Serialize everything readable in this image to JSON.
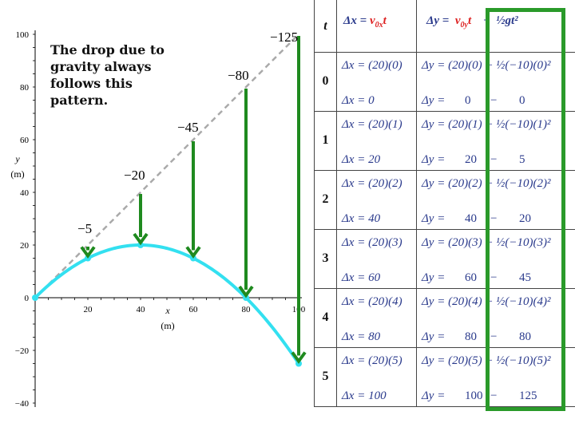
{
  "note": "The drop due to gravity always follows this pattern.",
  "chart_data": {
    "type": "line",
    "xlabel": "x\n(m)",
    "ylabel": "y\n(m)",
    "x_ticks": [
      20,
      40,
      60,
      80,
      100
    ],
    "y_ticks": [
      100,
      80,
      60,
      40,
      20,
      0,
      -20,
      -40
    ],
    "xlim": [
      0,
      100
    ],
    "ylim": [
      -40,
      100
    ],
    "trajectory": {
      "x": [
        0,
        20,
        40,
        60,
        80,
        100
      ],
      "y": [
        0,
        15,
        20,
        15,
        0,
        -25
      ]
    },
    "straight_line": {
      "x": [
        0,
        20,
        40,
        60,
        80,
        100
      ],
      "y": [
        0,
        20,
        40,
        60,
        80,
        100
      ]
    },
    "drop_labels": [
      "−5",
      "−20",
      "−45",
      "−80",
      "−125"
    ]
  },
  "table": {
    "header_t": "t",
    "header_dx": "Δx = v0x t",
    "header_dy": "Δy = v0y t + ½gt²",
    "rows": [
      {
        "t": "0",
        "dx_formula": "Δx = (20)(0)",
        "dx_result": "Δx = 0",
        "dy_formula": "Δy = (20)(0) + ½(−10)(0)²",
        "dy_a": "0",
        "dy_b": "0"
      },
      {
        "t": "1",
        "dx_formula": "Δx = (20)(1)",
        "dx_result": "Δx = 20",
        "dy_formula": "Δy = (20)(1) + ½(−10)(1)²",
        "dy_a": "20",
        "dy_b": "5"
      },
      {
        "t": "2",
        "dx_formula": "Δx = (20)(2)",
        "dx_result": "Δx = 40",
        "dy_formula": "Δy = (20)(2) + ½(−10)(2)²",
        "dy_a": "40",
        "dy_b": "20"
      },
      {
        "t": "3",
        "dx_formula": "Δx = (20)(3)",
        "dx_result": "Δx = 60",
        "dy_formula": "Δy = (20)(3) + ½(−10)(3)²",
        "dy_a": "60",
        "dy_b": "45"
      },
      {
        "t": "4",
        "dx_formula": "Δx = (20)(4)",
        "dx_result": "Δx = 80",
        "dy_formula": "Δy = (20)(4) + ½(−10)(4)²",
        "dy_a": "80",
        "dy_b": "80"
      },
      {
        "t": "5",
        "dx_formula": "Δx = (20)(5)",
        "dx_result": "Δx = 100",
        "dy_formula": "Δy = (20)(5) + ½(−10)(5)²",
        "dy_a": "100",
        "dy_b": "125"
      }
    ]
  },
  "colors": {
    "trajectory": "#33e0f0",
    "arrows": "#1f8a1f",
    "dashed": "#aaaaaa",
    "highlight": "#2a9a2a",
    "ink": "#2a3a8c",
    "red": "#dd2222"
  }
}
